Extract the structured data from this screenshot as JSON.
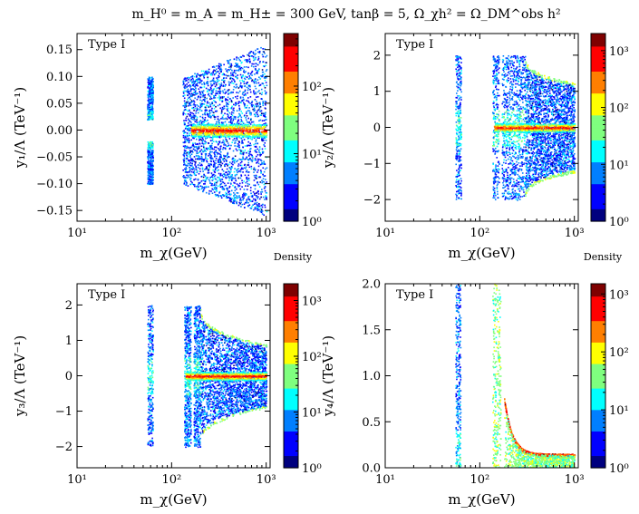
{
  "figure_title": "m_H⁰ = m_A = m_H± = 300 GeV,  tanβ = 5,  Ω_χh² = Ω_DM^obs h²",
  "colorbar_label": "Density",
  "colors": {
    "colormap": [
      "#00007f",
      "#0000ff",
      "#007fff",
      "#00ffff",
      "#7fff7f",
      "#ffff00",
      "#ff7f00",
      "#ff0000",
      "#7f0000"
    ],
    "frame": "#000000"
  },
  "chart_data": [
    {
      "type": "scatter",
      "panel_tag": "Type I",
      "xlabel": "m_χ(GeV)",
      "ylabel": "y₁/Λ (TeV⁻¹)",
      "xscale": "log",
      "xlim": [
        10,
        1100
      ],
      "ylim": [
        -0.17,
        0.18
      ],
      "xticks": [
        {
          "v": 10,
          "label": "10¹"
        },
        {
          "v": 100,
          "label": "10²"
        },
        {
          "v": 1000,
          "label": "10³"
        }
      ],
      "yticks": [
        {
          "v": -0.15,
          "label": "−0.15"
        },
        {
          "v": -0.1,
          "label": "−0.10"
        },
        {
          "v": -0.05,
          "label": "−0.05"
        },
        {
          "v": 0.0,
          "label": "0.00"
        },
        {
          "v": 0.05,
          "label": "0.05"
        },
        {
          "v": 0.1,
          "label": "0.10"
        },
        {
          "v": 0.15,
          "label": "0.15"
        }
      ],
      "colorbar": {
        "scale": "log",
        "max": 600,
        "ticks": [
          {
            "v": 1,
            "label": "10⁰"
          },
          {
            "v": 10,
            "label": "10¹"
          },
          {
            "v": 100,
            "label": "10²"
          }
        ]
      },
      "regions": [
        {
          "desc": "resonance strip upper",
          "xmin": 55,
          "xmax": 63,
          "ymin": 0.02,
          "ymax": 0.1
        },
        {
          "desc": "resonance strip lower",
          "xmin": 55,
          "xmax": 63,
          "ymin": -0.1,
          "ymax": -0.02
        },
        {
          "desc": "bulk fan",
          "xmin": 130,
          "xmax": 1000,
          "yabs_at_xmin": 0.1,
          "yabs_at_xmax": 0.16
        },
        {
          "desc": "high-density band",
          "xmin": 160,
          "xmax": 1000,
          "ycenter": 0.0,
          "halfwidth": 0.004,
          "density": 400
        }
      ]
    },
    {
      "type": "scatter",
      "panel_tag": "Type I",
      "xlabel": "m_χ(GeV)",
      "ylabel": "y₂/Λ (TeV⁻¹)",
      "xscale": "log",
      "xlim": [
        10,
        1100
      ],
      "ylim": [
        -2.6,
        2.6
      ],
      "xticks": [
        {
          "v": 10,
          "label": "10¹"
        },
        {
          "v": 100,
          "label": "10²"
        },
        {
          "v": 1000,
          "label": "10³"
        }
      ],
      "yticks": [
        {
          "v": -2,
          "label": "−2"
        },
        {
          "v": -1,
          "label": "−1"
        },
        {
          "v": 0,
          "label": "0"
        },
        {
          "v": 1,
          "label": "1"
        },
        {
          "v": 2,
          "label": "2"
        }
      ],
      "colorbar": {
        "scale": "log",
        "max": 2000,
        "ticks": [
          {
            "v": 1,
            "label": "10⁰"
          },
          {
            "v": 10,
            "label": "10¹"
          },
          {
            "v": 100,
            "label": "10²"
          },
          {
            "v": 1000,
            "label": "10³"
          }
        ]
      },
      "regions": [
        {
          "desc": "resonance strip",
          "xmin": 55,
          "xmax": 63,
          "ymin": -2.0,
          "ymax": 2.0
        },
        {
          "desc": "bulk box",
          "xmin": 135,
          "xmax": 300,
          "ymin": -2.0,
          "ymax": 2.0
        },
        {
          "desc": "bounded region",
          "xmin": 300,
          "xmax": 1000,
          "yabs_at_xmin": 2.0,
          "yabs_at_xmax": 1.25
        },
        {
          "desc": "high-density band",
          "xmin": 140,
          "xmax": 1000,
          "ycenter": 0.0,
          "halfwidth": 0.04,
          "density": 1500
        }
      ]
    },
    {
      "type": "scatter",
      "panel_tag": "Type I",
      "xlabel": "m_χ(GeV)",
      "ylabel": "y₃/Λ (TeV⁻¹)",
      "xscale": "log",
      "xlim": [
        10,
        1100
      ],
      "ylim": [
        -2.6,
        2.6
      ],
      "xticks": [
        {
          "v": 10,
          "label": "10¹"
        },
        {
          "v": 100,
          "label": "10²"
        },
        {
          "v": 1000,
          "label": "10³"
        }
      ],
      "yticks": [
        {
          "v": -2,
          "label": "−2"
        },
        {
          "v": -1,
          "label": "−1"
        },
        {
          "v": 0,
          "label": "0"
        },
        {
          "v": 1,
          "label": "1"
        },
        {
          "v": 2,
          "label": "2"
        }
      ],
      "colorbar": {
        "scale": "log",
        "max": 2000,
        "ticks": [
          {
            "v": 1,
            "label": "10⁰"
          },
          {
            "v": 10,
            "label": "10¹"
          },
          {
            "v": 100,
            "label": "10²"
          },
          {
            "v": 1000,
            "label": "10³"
          }
        ]
      },
      "regions": [
        {
          "desc": "resonance strip",
          "xmin": 55,
          "xmax": 63,
          "ymin": -2.0,
          "ymax": 2.0
        },
        {
          "desc": "bulk box",
          "xmin": 135,
          "xmax": 200,
          "ymin": -2.0,
          "ymax": 2.0
        },
        {
          "desc": "bounded region",
          "xmin": 200,
          "xmax": 1000,
          "yabs_at_xmin": 2.0,
          "yabs_at_xmax": 0.9
        },
        {
          "desc": "high-density band",
          "xmin": 140,
          "xmax": 1000,
          "ycenter": 0.0,
          "halfwidth": 0.04,
          "density": 1500
        }
      ]
    },
    {
      "type": "scatter",
      "panel_tag": "Type I",
      "xlabel": "m_χ(GeV)",
      "ylabel": "y₄/Λ (TeV⁻¹)",
      "xscale": "log",
      "xlim": [
        10,
        1100
      ],
      "ylim": [
        0.0,
        2.0
      ],
      "xticks": [
        {
          "v": 10,
          "label": "10¹"
        },
        {
          "v": 100,
          "label": "10²"
        },
        {
          "v": 1000,
          "label": "10³"
        }
      ],
      "yticks": [
        {
          "v": 0.0,
          "label": "0.0"
        },
        {
          "v": 0.5,
          "label": "0.5"
        },
        {
          "v": 1.0,
          "label": "1.0"
        },
        {
          "v": 1.5,
          "label": "1.5"
        },
        {
          "v": 2.0,
          "label": "2.0"
        }
      ],
      "colorbar": {
        "scale": "log",
        "max": 1500,
        "ticks": [
          {
            "v": 1,
            "label": "10⁰"
          },
          {
            "v": 10,
            "label": "10¹"
          },
          {
            "v": 100,
            "label": "10²"
          },
          {
            "v": 1000,
            "label": "10³"
          }
        ]
      },
      "regions": [
        {
          "desc": "resonance strip",
          "xmin": 55,
          "xmax": 62,
          "ymin": 0.0,
          "ymax": 2.0
        },
        {
          "desc": "thin strips",
          "xmin": 135,
          "xmax": 165,
          "ymin": 0.0,
          "ymax": 2.0
        },
        {
          "desc": "falling curve",
          "xmin": 180,
          "xmax": 1000,
          "y_at_xmin": 0.75,
          "y_at_xmax": 0.14
        },
        {
          "desc": "fill below curve",
          "xmin": 180,
          "xmax": 1000,
          "ymin": 0.0
        }
      ]
    }
  ]
}
